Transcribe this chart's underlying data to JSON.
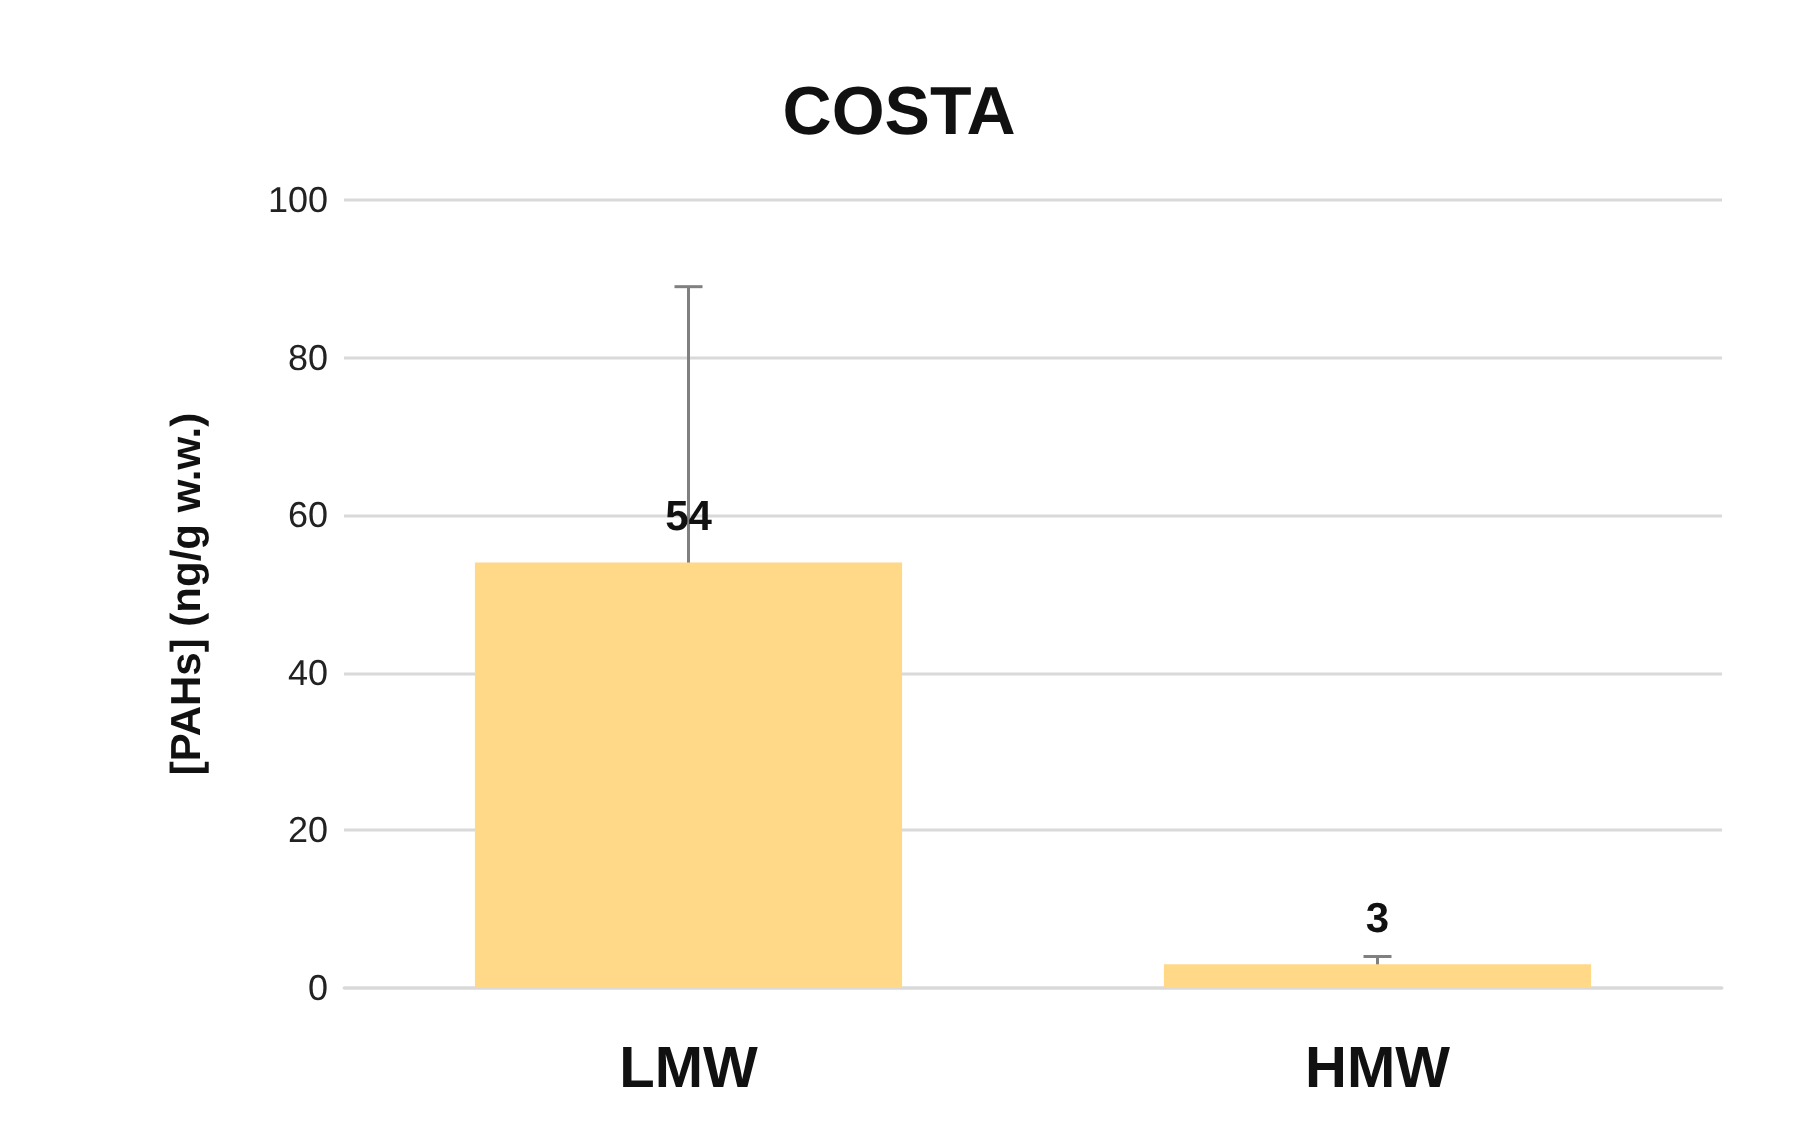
{
  "chart_data": {
    "type": "bar",
    "title": "COSTA",
    "ylabel": "[PAHs] (ng/g w.w.)",
    "categories": [
      "LMW",
      "HMW"
    ],
    "values": [
      54,
      3
    ],
    "errors": [
      35,
      1
    ],
    "color": "#ffd888",
    "ylim": [
      0,
      100
    ],
    "yticks": [
      0,
      20,
      40,
      60,
      80,
      100
    ],
    "grid": "y",
    "data_labels": true
  }
}
